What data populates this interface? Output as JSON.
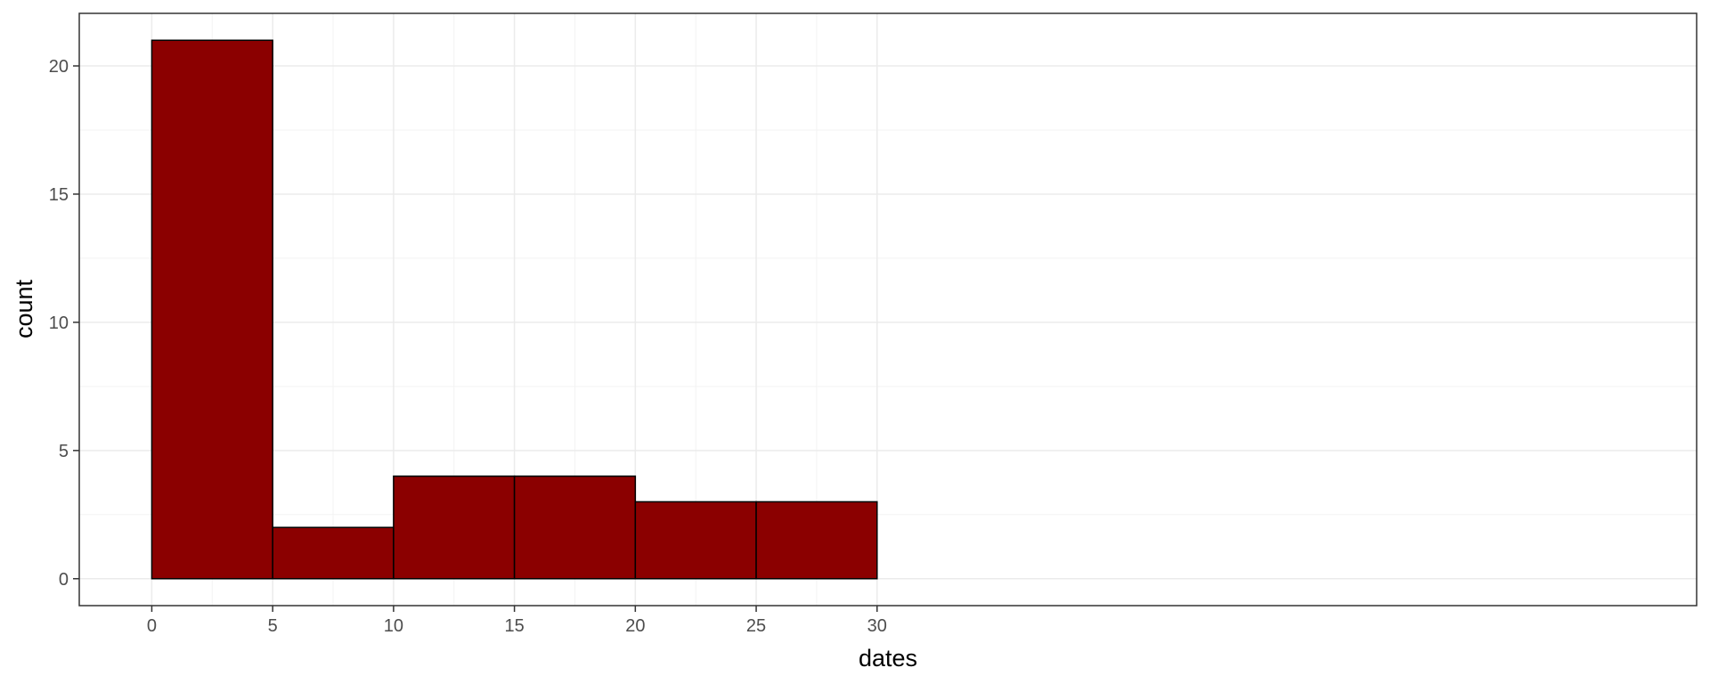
{
  "chart_data": {
    "type": "bar",
    "subtype": "histogram",
    "bins": [
      {
        "x0": 0,
        "x1": 5,
        "count": 21
      },
      {
        "x0": 5,
        "x1": 10,
        "count": 2
      },
      {
        "x0": 10,
        "x1": 15,
        "count": 4
      },
      {
        "x0": 15,
        "x1": 20,
        "count": 4
      },
      {
        "x0": 20,
        "x1": 25,
        "count": 3
      },
      {
        "x0": 25,
        "x1": 30,
        "count": 3
      }
    ],
    "xlabel": "dates",
    "ylabel": "count",
    "xlim": [
      -3,
      63.9
    ],
    "ylim": [
      -1.05,
      22.05
    ],
    "x_ticks": [
      "0",
      "5",
      "10",
      "15",
      "20",
      "25",
      "30"
    ],
    "x_tick_values": [
      0,
      5,
      10,
      15,
      20,
      25,
      30
    ],
    "y_ticks": [
      "0",
      "5",
      "10",
      "15",
      "20"
    ],
    "y_tick_values": [
      0,
      5,
      10,
      15,
      20
    ],
    "grid": true,
    "colors": {
      "bar_fill": "#8B0000",
      "bar_stroke": "#000000",
      "grid_major": "#EBEBEB",
      "grid_minor": "#F3F3F3",
      "panel_border": "#333333"
    }
  }
}
